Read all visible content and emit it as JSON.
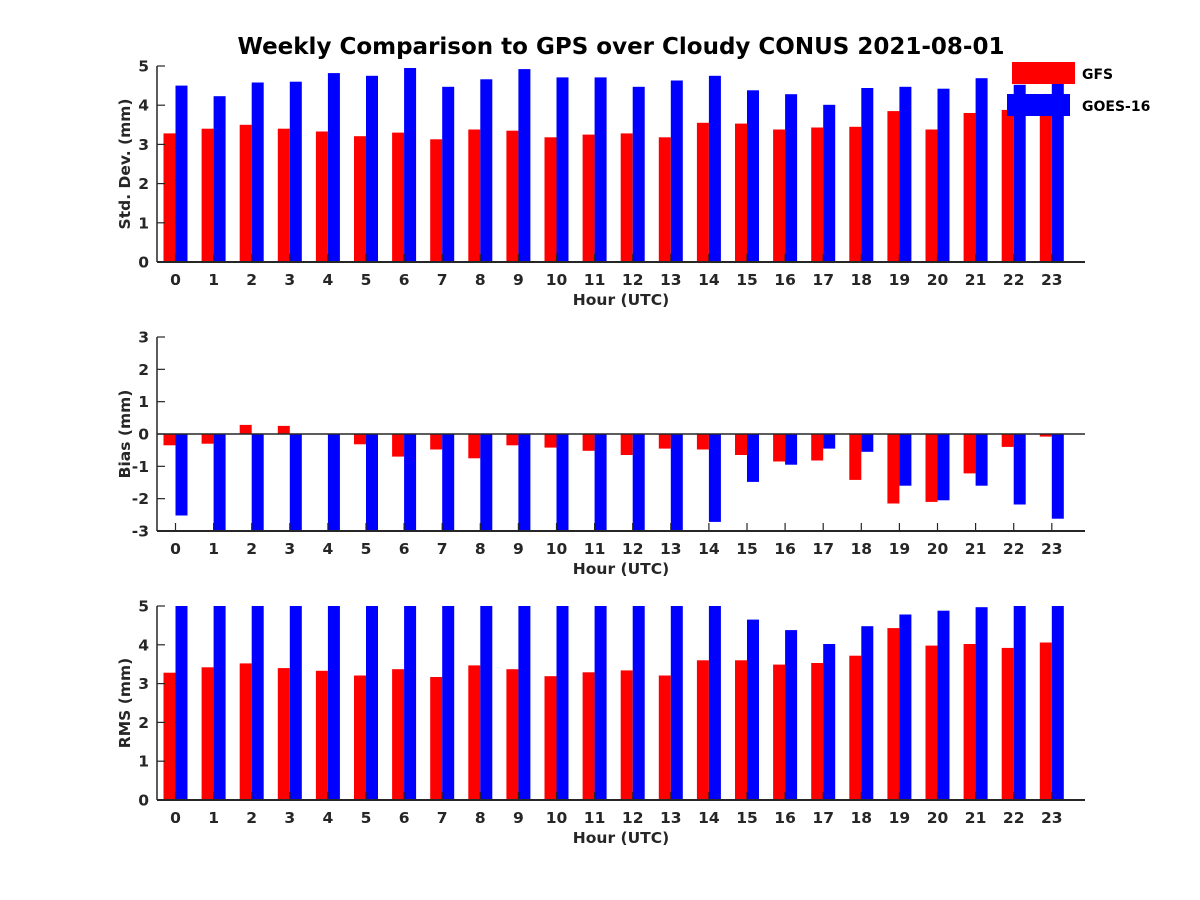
{
  "title": "Weekly Comparison to GPS over Cloudy CONUS 2021-08-01",
  "colors": {
    "GFS": "#ff0000",
    "GOES-16": "#0000ff",
    "axis": "#262626"
  },
  "legend": {
    "placement": "top-right",
    "items": [
      "GFS",
      "GOES-16"
    ]
  },
  "chart_data": [
    {
      "type": "bar",
      "ylabel": "Std. Dev. (mm)",
      "xlabel": "Hour (UTC)",
      "ylim": [
        0,
        5
      ],
      "yticks": [
        0,
        1,
        2,
        3,
        4,
        5
      ],
      "categories": [
        "0",
        "1",
        "2",
        "3",
        "4",
        "5",
        "6",
        "7",
        "8",
        "9",
        "10",
        "11",
        "12",
        "13",
        "14",
        "15",
        "16",
        "17",
        "18",
        "19",
        "20",
        "21",
        "22",
        "23"
      ],
      "series": [
        {
          "name": "GFS",
          "values": [
            3.28,
            3.4,
            3.5,
            3.4,
            3.33,
            3.21,
            3.3,
            3.13,
            3.38,
            3.35,
            3.18,
            3.25,
            3.28,
            3.18,
            3.55,
            3.53,
            3.38,
            3.43,
            3.45,
            3.85,
            3.38,
            3.8,
            3.88,
            3.95
          ]
        },
        {
          "name": "GOES-16",
          "values": [
            4.5,
            4.23,
            4.58,
            4.6,
            4.82,
            4.75,
            4.95,
            4.47,
            4.66,
            4.92,
            4.71,
            4.71,
            4.47,
            4.63,
            4.75,
            4.38,
            4.28,
            4.01,
            4.44,
            4.47,
            4.42,
            4.69,
            4.52,
            4.6
          ]
        }
      ],
      "grid": false
    },
    {
      "type": "bar",
      "ylabel": "Bias (mm)",
      "xlabel": "Hour (UTC)",
      "ylim": [
        -3,
        3
      ],
      "yticks": [
        -3,
        -2,
        -1,
        0,
        1,
        2,
        3
      ],
      "categories": [
        "0",
        "1",
        "2",
        "3",
        "4",
        "5",
        "6",
        "7",
        "8",
        "9",
        "10",
        "11",
        "12",
        "13",
        "14",
        "15",
        "16",
        "17",
        "18",
        "19",
        "20",
        "21",
        "22",
        "23"
      ],
      "series": [
        {
          "name": "GFS",
          "values": [
            -0.35,
            -0.3,
            0.28,
            0.25,
            0.0,
            -0.32,
            -0.7,
            -0.48,
            -0.75,
            -0.35,
            -0.42,
            -0.52,
            -0.65,
            -0.45,
            -0.48,
            -0.65,
            -0.85,
            -0.82,
            -1.42,
            -2.15,
            -2.1,
            -1.22,
            -0.4,
            -0.08
          ]
        },
        {
          "name": "GOES-16",
          "values": [
            -2.52,
            -3.0,
            -3.0,
            -3.0,
            -3.0,
            -3.0,
            -3.0,
            -3.0,
            -3.0,
            -3.0,
            -3.0,
            -3.0,
            -3.0,
            -3.0,
            -2.72,
            -1.48,
            -0.95,
            -0.45,
            -0.55,
            -1.6,
            -2.05,
            -1.6,
            -2.18,
            -2.62
          ]
        }
      ],
      "grid": false
    },
    {
      "type": "bar",
      "ylabel": "RMS (mm)",
      "xlabel": "Hour (UTC)",
      "ylim": [
        0,
        5
      ],
      "yticks": [
        0,
        1,
        2,
        3,
        4,
        5
      ],
      "categories": [
        "0",
        "1",
        "2",
        "3",
        "4",
        "5",
        "6",
        "7",
        "8",
        "9",
        "10",
        "11",
        "12",
        "13",
        "14",
        "15",
        "16",
        "17",
        "18",
        "19",
        "20",
        "21",
        "22",
        "23"
      ],
      "series": [
        {
          "name": "GFS",
          "values": [
            3.28,
            3.42,
            3.52,
            3.4,
            3.33,
            3.21,
            3.37,
            3.17,
            3.47,
            3.37,
            3.19,
            3.29,
            3.34,
            3.21,
            3.6,
            3.6,
            3.49,
            3.53,
            3.72,
            4.43,
            3.98,
            4.02,
            3.92,
            4.06
          ]
        },
        {
          "name": "GOES-16",
          "values": [
            5.0,
            5.0,
            5.0,
            5.0,
            5.0,
            5.0,
            5.0,
            5.0,
            5.0,
            5.0,
            5.0,
            5.0,
            5.0,
            5.0,
            5.0,
            4.65,
            4.38,
            4.02,
            4.48,
            4.78,
            4.88,
            4.97,
            5.0,
            5.0
          ]
        }
      ],
      "grid": false
    }
  ]
}
